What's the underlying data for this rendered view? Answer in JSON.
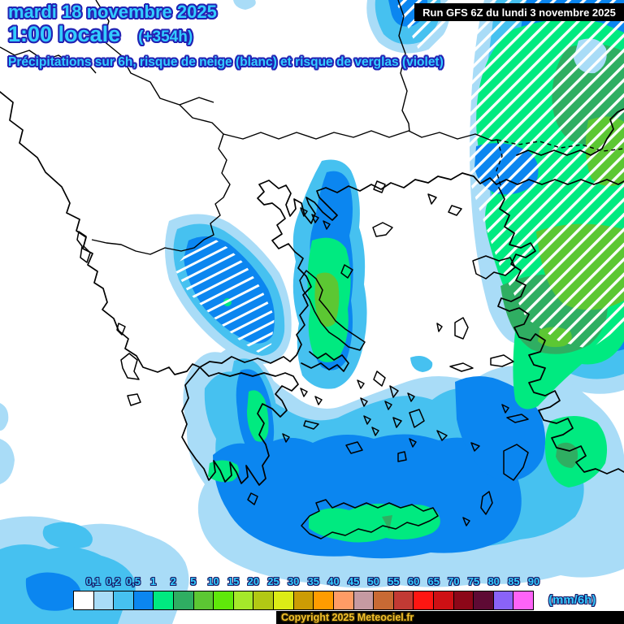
{
  "header": {
    "date_line": "mardi 18 novembre 2025",
    "time_line": "1:00 locale",
    "offset": "(+354h)",
    "subtitle": "Précipitations sur 6h, risque de neige (blanc) et risque de verglas (violet)",
    "text_color": "#33ccff",
    "outline_color": "#2222b4"
  },
  "run_box": {
    "label": "Run GFS 6Z du lundi 3 novembre 2025"
  },
  "map": {
    "region": "Greece and Aegean Sea",
    "model": "GFS",
    "snow_hatch_meaning": "risque de neige (hachures blanches)",
    "ice_color_meaning": "risque de verglas (violet)",
    "precip_palette_low_to_high": [
      "#a9dcf7",
      "#46c1f0",
      "#0b86f0",
      "#00ea80",
      "#2fae62",
      "#5cc733"
    ]
  },
  "legend": {
    "unit": "(mm/6h)",
    "ticks": [
      "0,1",
      "0,2",
      "0,5",
      "1",
      "2",
      "5",
      "10",
      "15",
      "20",
      "25",
      "30",
      "35",
      "40",
      "45",
      "50",
      "55",
      "60",
      "65",
      "70",
      "75",
      "80",
      "85",
      "90"
    ],
    "cells": [
      "#ffffff",
      "#a9dcf7",
      "#46c1f0",
      "#0b86f0",
      "#00ea80",
      "#2fae62",
      "#5cc733",
      "#5fe80a",
      "#a5e82a",
      "#b2c814",
      "#dcec16",
      "#cc9c04",
      "#ff9c00",
      "#ff9c66",
      "#c69aa2",
      "#c86a34",
      "#c23a34",
      "#fe1612",
      "#ce1014",
      "#8c0718",
      "#5e0a34",
      "#8a63f8",
      "#fe63f8"
    ]
  },
  "copyright": {
    "label": "Copyright 2025 Meteociel.fr",
    "color": "#f4c22c"
  }
}
